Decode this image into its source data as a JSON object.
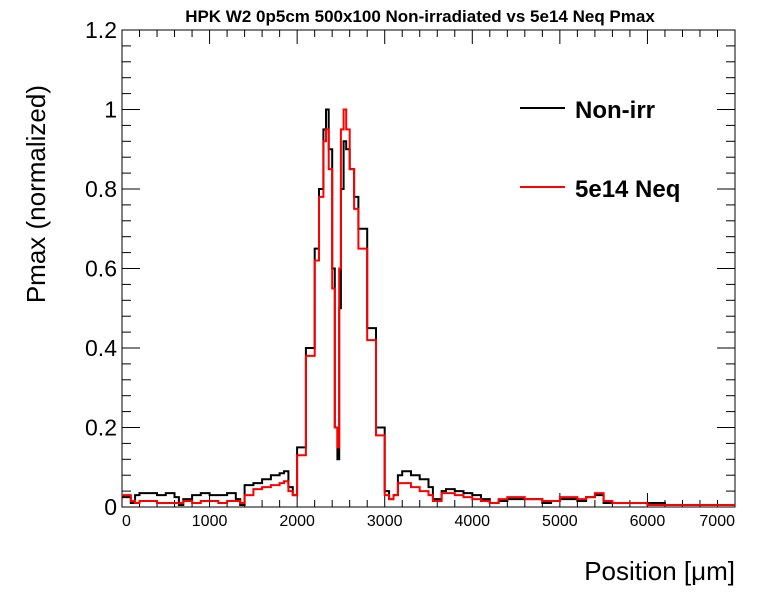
{
  "chart_data": {
    "type": "line",
    "title": "HPK W2 0p5cm 500x100 Non-irradiated vs 5e14 Neq Pmax",
    "xlabel": "Position [μm]",
    "ylabel": "Pmax (normalized)",
    "xlim": [
      0,
      7000
    ],
    "ylim": [
      0,
      1.2
    ],
    "x_ticks": [
      0,
      1000,
      2000,
      3000,
      4000,
      5000,
      6000,
      7000
    ],
    "x_tick_labels": [
      "0",
      "1000",
      "2000",
      "3000",
      "4000",
      "5000",
      "6000",
      "7000"
    ],
    "y_ticks": [
      0,
      0.2,
      0.4,
      0.6,
      0.8,
      1.0,
      1.2
    ],
    "y_tick_labels": [
      "0",
      "0.2",
      "0.4",
      "0.6",
      "0.8",
      "1",
      "1.2"
    ],
    "grid": false,
    "legend_position": "top-right",
    "series": [
      {
        "name": "Non-irr",
        "color": "#000000",
        "x": [
          0,
          100,
          150,
          200,
          300,
          400,
          500,
          600,
          650,
          700,
          800,
          900,
          1000,
          1100,
          1200,
          1300,
          1350,
          1400,
          1500,
          1600,
          1700,
          1800,
          1850,
          1900,
          1950,
          2000,
          2100,
          2200,
          2250,
          2300,
          2330,
          2360,
          2400,
          2430,
          2460,
          2480,
          2500,
          2530,
          2560,
          2600,
          2650,
          2700,
          2800,
          2900,
          3000,
          3050,
          3100,
          3150,
          3200,
          3300,
          3400,
          3500,
          3550,
          3600,
          3650,
          3700,
          3800,
          3900,
          4000,
          4100,
          4200,
          4300,
          4400,
          4500,
          4600,
          4700,
          4800,
          4900,
          5000,
          5100,
          5200,
          5300,
          5400,
          5500,
          5600,
          5800,
          6000,
          6200,
          6400,
          6600,
          6800,
          7000
        ],
        "y": [
          0.025,
          0.01,
          0.03,
          0.035,
          0.035,
          0.03,
          0.035,
          0.025,
          0.005,
          0.02,
          0.03,
          0.035,
          0.03,
          0.03,
          0.035,
          0.02,
          0.005,
          0.055,
          0.06,
          0.07,
          0.08,
          0.085,
          0.09,
          0.05,
          0.03,
          0.15,
          0.4,
          0.65,
          0.8,
          0.95,
          1.0,
          0.9,
          0.6,
          0.2,
          0.12,
          0.5,
          0.8,
          0.92,
          0.9,
          0.85,
          0.78,
          0.7,
          0.45,
          0.2,
          0.04,
          0.02,
          0.03,
          0.08,
          0.09,
          0.08,
          0.07,
          0.05,
          0.02,
          0.02,
          0.04,
          0.045,
          0.04,
          0.035,
          0.03,
          0.02,
          0.01,
          0.015,
          0.02,
          0.02,
          0.02,
          0.02,
          0.01,
          0.015,
          0.02,
          0.02,
          0.015,
          0.025,
          0.03,
          0.01,
          0.01,
          0.01,
          0.01,
          0.005,
          0.005,
          0.005,
          0.005,
          0.005
        ]
      },
      {
        "name": "5e14 Neq",
        "color": "#ff0000",
        "x": [
          0,
          100,
          150,
          200,
          300,
          400,
          500,
          600,
          700,
          800,
          900,
          1000,
          1100,
          1200,
          1300,
          1350,
          1400,
          1500,
          1600,
          1700,
          1800,
          1850,
          1900,
          1950,
          2000,
          2100,
          2200,
          2250,
          2300,
          2330,
          2360,
          2400,
          2430,
          2460,
          2480,
          2500,
          2530,
          2560,
          2600,
          2650,
          2700,
          2800,
          2900,
          3000,
          3050,
          3100,
          3150,
          3200,
          3300,
          3400,
          3500,
          3550,
          3600,
          3650,
          3700,
          3800,
          3900,
          4000,
          4100,
          4200,
          4300,
          4400,
          4500,
          4600,
          4700,
          4800,
          4900,
          5000,
          5100,
          5200,
          5300,
          5400,
          5500,
          5600,
          5800,
          6000,
          6200,
          6400,
          6600,
          6800,
          7000
        ],
        "y": [
          0.03,
          0.015,
          0.01,
          0.015,
          0.015,
          0.01,
          0.01,
          0.01,
          0.015,
          0.01,
          0.015,
          0.015,
          0.01,
          0.015,
          0.015,
          0.01,
          0.03,
          0.045,
          0.05,
          0.055,
          0.06,
          0.065,
          0.04,
          0.03,
          0.13,
          0.38,
          0.62,
          0.78,
          0.92,
          0.95,
          0.85,
          0.55,
          0.2,
          0.15,
          0.6,
          0.95,
          1.0,
          0.95,
          0.85,
          0.75,
          0.65,
          0.42,
          0.18,
          0.03,
          0.02,
          0.03,
          0.06,
          0.06,
          0.05,
          0.04,
          0.03,
          0.015,
          0.015,
          0.035,
          0.035,
          0.03,
          0.025,
          0.02,
          0.015,
          0.01,
          0.02,
          0.025,
          0.025,
          0.02,
          0.02,
          0.015,
          0.015,
          0.025,
          0.025,
          0.02,
          0.025,
          0.035,
          0.015,
          0.01,
          0.01,
          0.005,
          0.005,
          0.005,
          0.005,
          0.005,
          0.005
        ]
      }
    ]
  }
}
